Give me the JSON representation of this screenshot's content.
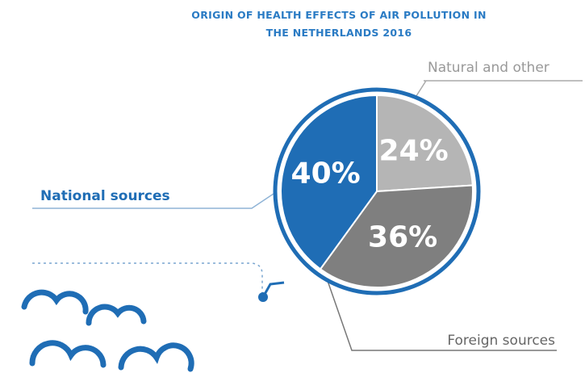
{
  "chart_data": {
    "type": "pie",
    "title": "ORIGIN OF HEALTH EFFECTS OF AIR POLLUTION IN THE NETHERLANDS 2016",
    "categories": [
      "Natural and other",
      "Foreign sources",
      "National sources"
    ],
    "values": [
      24,
      36,
      40
    ],
    "value_labels": [
      "24%",
      "36%",
      "40%"
    ],
    "colors": [
      "#b5b5b5",
      "#7f7f7f",
      "#1f6db5"
    ]
  }
}
